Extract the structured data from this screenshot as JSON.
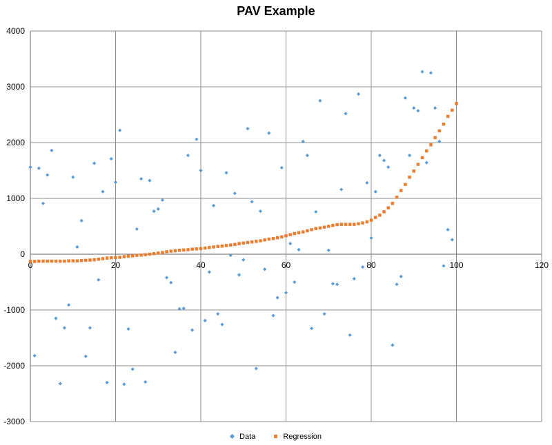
{
  "chart_data": {
    "type": "scatter",
    "title": "PAV Example",
    "xlabel": "",
    "ylabel": "",
    "xlim": [
      0,
      120
    ],
    "ylim": [
      -3000,
      4000
    ],
    "x_ticks": [
      0,
      20,
      40,
      60,
      80,
      100,
      120
    ],
    "y_ticks": [
      -3000,
      -2000,
      -1000,
      0,
      1000,
      2000,
      3000,
      4000
    ],
    "grid": true,
    "legend_position": "bottom",
    "colors": {
      "data": "#5B9BD5",
      "regression": "#ED7D31",
      "grid": "#8c8c8c",
      "axis": "#808080"
    },
    "series": [
      {
        "name": "Data",
        "marker": "diamond",
        "points": [
          [
            0,
            1560
          ],
          [
            1,
            -1820
          ],
          [
            2,
            1540
          ],
          [
            3,
            910
          ],
          [
            4,
            1420
          ],
          [
            5,
            1860
          ],
          [
            6,
            -1150
          ],
          [
            7,
            -2320
          ],
          [
            8,
            -1320
          ],
          [
            9,
            -910
          ],
          [
            10,
            1380
          ],
          [
            11,
            130
          ],
          [
            12,
            600
          ],
          [
            13,
            -1830
          ],
          [
            14,
            -1320
          ],
          [
            15,
            1630
          ],
          [
            16,
            -460
          ],
          [
            17,
            1120
          ],
          [
            18,
            -2300
          ],
          [
            19,
            1710
          ],
          [
            20,
            1290
          ],
          [
            21,
            2220
          ],
          [
            22,
            -2330
          ],
          [
            23,
            -1340
          ],
          [
            24,
            -2060
          ],
          [
            25,
            450
          ],
          [
            26,
            1350
          ],
          [
            27,
            -2290
          ],
          [
            28,
            1320
          ],
          [
            29,
            770
          ],
          [
            30,
            810
          ],
          [
            31,
            970
          ],
          [
            32,
            -420
          ],
          [
            33,
            -510
          ],
          [
            34,
            -1760
          ],
          [
            35,
            -980
          ],
          [
            36,
            -970
          ],
          [
            37,
            1770
          ],
          [
            38,
            -1360
          ],
          [
            39,
            2060
          ],
          [
            40,
            1500
          ],
          [
            41,
            -1190
          ],
          [
            42,
            -320
          ],
          [
            43,
            870
          ],
          [
            44,
            -1070
          ],
          [
            45,
            -1260
          ],
          [
            46,
            1460
          ],
          [
            47,
            -20
          ],
          [
            48,
            1090
          ],
          [
            49,
            -370
          ],
          [
            50,
            -100
          ],
          [
            51,
            2250
          ],
          [
            52,
            940
          ],
          [
            53,
            -2050
          ],
          [
            54,
            770
          ],
          [
            55,
            -270
          ],
          [
            56,
            2170
          ],
          [
            57,
            -1100
          ],
          [
            58,
            -780
          ],
          [
            59,
            1550
          ],
          [
            60,
            -690
          ],
          [
            61,
            190
          ],
          [
            62,
            -500
          ],
          [
            63,
            80
          ],
          [
            64,
            2020
          ],
          [
            65,
            1770
          ],
          [
            66,
            -1330
          ],
          [
            67,
            760
          ],
          [
            68,
            2750
          ],
          [
            69,
            -1070
          ],
          [
            70,
            70
          ],
          [
            71,
            -530
          ],
          [
            72,
            -540
          ],
          [
            73,
            1160
          ],
          [
            74,
            2520
          ],
          [
            75,
            -1450
          ],
          [
            76,
            -440
          ],
          [
            77,
            2870
          ],
          [
            78,
            -230
          ],
          [
            79,
            1280
          ],
          [
            80,
            290
          ],
          [
            81,
            1120
          ],
          [
            82,
            1770
          ],
          [
            83,
            1680
          ],
          [
            84,
            1560
          ],
          [
            85,
            -1630
          ],
          [
            86,
            -540
          ],
          [
            87,
            -400
          ],
          [
            88,
            2800
          ],
          [
            89,
            1770
          ],
          [
            90,
            2620
          ],
          [
            91,
            2570
          ],
          [
            92,
            3270
          ],
          [
            93,
            1640
          ],
          [
            94,
            3250
          ],
          [
            95,
            2620
          ],
          [
            96,
            2020
          ],
          [
            97,
            -210
          ],
          [
            98,
            440
          ],
          [
            99,
            260
          ]
        ]
      },
      {
        "name": "Regression",
        "marker": "square",
        "points": [
          [
            0,
            -130
          ],
          [
            1,
            -130
          ],
          [
            2,
            -125
          ],
          [
            3,
            -125
          ],
          [
            4,
            -125
          ],
          [
            5,
            -125
          ],
          [
            6,
            -125
          ],
          [
            7,
            -125
          ],
          [
            8,
            -125
          ],
          [
            9,
            -120
          ],
          [
            10,
            -120
          ],
          [
            11,
            -120
          ],
          [
            12,
            -115
          ],
          [
            13,
            -110
          ],
          [
            14,
            -105
          ],
          [
            15,
            -100
          ],
          [
            16,
            -90
          ],
          [
            17,
            -80
          ],
          [
            18,
            -70
          ],
          [
            19,
            -65
          ],
          [
            20,
            -60
          ],
          [
            21,
            -55
          ],
          [
            22,
            -45
          ],
          [
            23,
            -35
          ],
          [
            24,
            -30
          ],
          [
            25,
            -20
          ],
          [
            26,
            -15
          ],
          [
            27,
            -10
          ],
          [
            28,
            0
          ],
          [
            29,
            10
          ],
          [
            30,
            20
          ],
          [
            31,
            30
          ],
          [
            32,
            45
          ],
          [
            33,
            55
          ],
          [
            34,
            60
          ],
          [
            35,
            70
          ],
          [
            36,
            75
          ],
          [
            37,
            80
          ],
          [
            38,
            90
          ],
          [
            39,
            95
          ],
          [
            40,
            100
          ],
          [
            41,
            110
          ],
          [
            42,
            120
          ],
          [
            43,
            130
          ],
          [
            44,
            140
          ],
          [
            45,
            145
          ],
          [
            46,
            155
          ],
          [
            47,
            165
          ],
          [
            48,
            175
          ],
          [
            49,
            190
          ],
          [
            50,
            200
          ],
          [
            51,
            210
          ],
          [
            52,
            220
          ],
          [
            53,
            230
          ],
          [
            54,
            240
          ],
          [
            55,
            255
          ],
          [
            56,
            270
          ],
          [
            57,
            280
          ],
          [
            58,
            295
          ],
          [
            59,
            310
          ],
          [
            60,
            330
          ],
          [
            61,
            350
          ],
          [
            62,
            370
          ],
          [
            63,
            385
          ],
          [
            64,
            400
          ],
          [
            65,
            420
          ],
          [
            66,
            440
          ],
          [
            67,
            460
          ],
          [
            68,
            470
          ],
          [
            69,
            485
          ],
          [
            70,
            500
          ],
          [
            71,
            515
          ],
          [
            72,
            530
          ],
          [
            73,
            535
          ],
          [
            74,
            535
          ],
          [
            75,
            535
          ],
          [
            76,
            535
          ],
          [
            77,
            545
          ],
          [
            78,
            560
          ],
          [
            79,
            580
          ],
          [
            80,
            610
          ],
          [
            81,
            660
          ],
          [
            82,
            700
          ],
          [
            83,
            760
          ],
          [
            84,
            830
          ],
          [
            85,
            910
          ],
          [
            86,
            1020
          ],
          [
            87,
            1140
          ],
          [
            88,
            1250
          ],
          [
            89,
            1380
          ],
          [
            90,
            1490
          ],
          [
            91,
            1610
          ],
          [
            92,
            1730
          ],
          [
            93,
            1850
          ],
          [
            94,
            1960
          ],
          [
            95,
            2090
          ],
          [
            96,
            2210
          ],
          [
            97,
            2330
          ],
          [
            98,
            2470
          ],
          [
            99,
            2580
          ],
          [
            100,
            2700
          ]
        ]
      }
    ]
  }
}
